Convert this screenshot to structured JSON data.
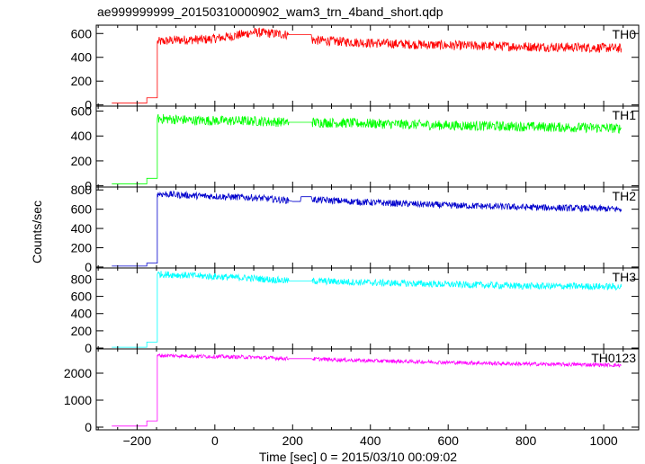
{
  "chart_data": {
    "type": "line",
    "title": "ae999999999_20150310000902_wam3_trn_4band_short.qdp",
    "xlabel": "Time [sec] 0 = 2015/03/10 00:09:02",
    "ylabel": "Counts/sec",
    "xlim": [
      -305,
      1090
    ],
    "xticks": [
      -200,
      0,
      200,
      400,
      600,
      800,
      1000
    ],
    "panels": [
      {
        "name": "TH0",
        "color": "#ff0000",
        "ylim": [
          -10,
          670
        ],
        "yticks": [
          0,
          200,
          400,
          600
        ],
        "noise": 40,
        "points": [
          [
            -265,
            15
          ],
          [
            -175,
            15
          ],
          [
            -175,
            60
          ],
          [
            -148,
            60
          ],
          [
            -148,
            530
          ],
          [
            -100,
            545
          ],
          [
            -20,
            550
          ],
          [
            40,
            575
          ],
          [
            100,
            610
          ],
          [
            150,
            600
          ],
          [
            190,
            590
          ],
          [
            248,
            590
          ],
          [
            250,
            545
          ],
          [
            400,
            520
          ],
          [
            600,
            500
          ],
          [
            800,
            490
          ],
          [
            1000,
            480
          ],
          [
            1045,
            475
          ]
        ]
      },
      {
        "name": "TH1",
        "color": "#00ff00",
        "ylim": [
          -10,
          640
        ],
        "yticks": [
          0,
          200,
          400,
          600
        ],
        "noise": 40,
        "points": [
          [
            -265,
            15
          ],
          [
            -175,
            15
          ],
          [
            -175,
            60
          ],
          [
            -148,
            60
          ],
          [
            -148,
            540
          ],
          [
            -50,
            525
          ],
          [
            100,
            520
          ],
          [
            190,
            510
          ],
          [
            248,
            510
          ],
          [
            250,
            510
          ],
          [
            400,
            500
          ],
          [
            600,
            485
          ],
          [
            800,
            475
          ],
          [
            1000,
            465
          ],
          [
            1045,
            460
          ]
        ]
      },
      {
        "name": "TH2",
        "color": "#0000cc",
        "ylim": [
          -10,
          830
        ],
        "yticks": [
          0,
          200,
          400,
          600,
          800
        ],
        "noise": 35,
        "points": [
          [
            -265,
            10
          ],
          [
            -175,
            10
          ],
          [
            -175,
            40
          ],
          [
            -148,
            40
          ],
          [
            -148,
            760
          ],
          [
            -50,
            740
          ],
          [
            100,
            720
          ],
          [
            190,
            690
          ],
          [
            200,
            680
          ],
          [
            220,
            680
          ],
          [
            222,
            730
          ],
          [
            248,
            730
          ],
          [
            250,
            700
          ],
          [
            400,
            670
          ],
          [
            600,
            640
          ],
          [
            800,
            620
          ],
          [
            1000,
            605
          ],
          [
            1045,
            600
          ]
        ]
      },
      {
        "name": "TH3",
        "color": "#00ffff",
        "ylim": [
          -10,
          930
        ],
        "yticks": [
          0,
          200,
          400,
          600,
          800
        ],
        "noise": 40,
        "points": [
          [
            -265,
            10
          ],
          [
            -175,
            10
          ],
          [
            -175,
            70
          ],
          [
            -148,
            70
          ],
          [
            -148,
            860
          ],
          [
            -50,
            840
          ],
          [
            100,
            810
          ],
          [
            190,
            780
          ],
          [
            248,
            780
          ],
          [
            250,
            780
          ],
          [
            400,
            760
          ],
          [
            600,
            740
          ],
          [
            800,
            720
          ],
          [
            1000,
            715
          ],
          [
            1045,
            710
          ]
        ]
      },
      {
        "name": "TH0123",
        "color": "#ff00ff",
        "ylim": [
          -100,
          2900
        ],
        "yticks": [
          0,
          1000,
          2000
        ],
        "noise": 70,
        "points": [
          [
            -265,
            40
          ],
          [
            -175,
            40
          ],
          [
            -175,
            230
          ],
          [
            -148,
            230
          ],
          [
            -148,
            2660
          ],
          [
            -50,
            2630
          ],
          [
            100,
            2590
          ],
          [
            190,
            2540
          ],
          [
            248,
            2540
          ],
          [
            250,
            2530
          ],
          [
            400,
            2460
          ],
          [
            600,
            2400
          ],
          [
            800,
            2340
          ],
          [
            1000,
            2310
          ],
          [
            1045,
            2290
          ]
        ]
      }
    ]
  }
}
